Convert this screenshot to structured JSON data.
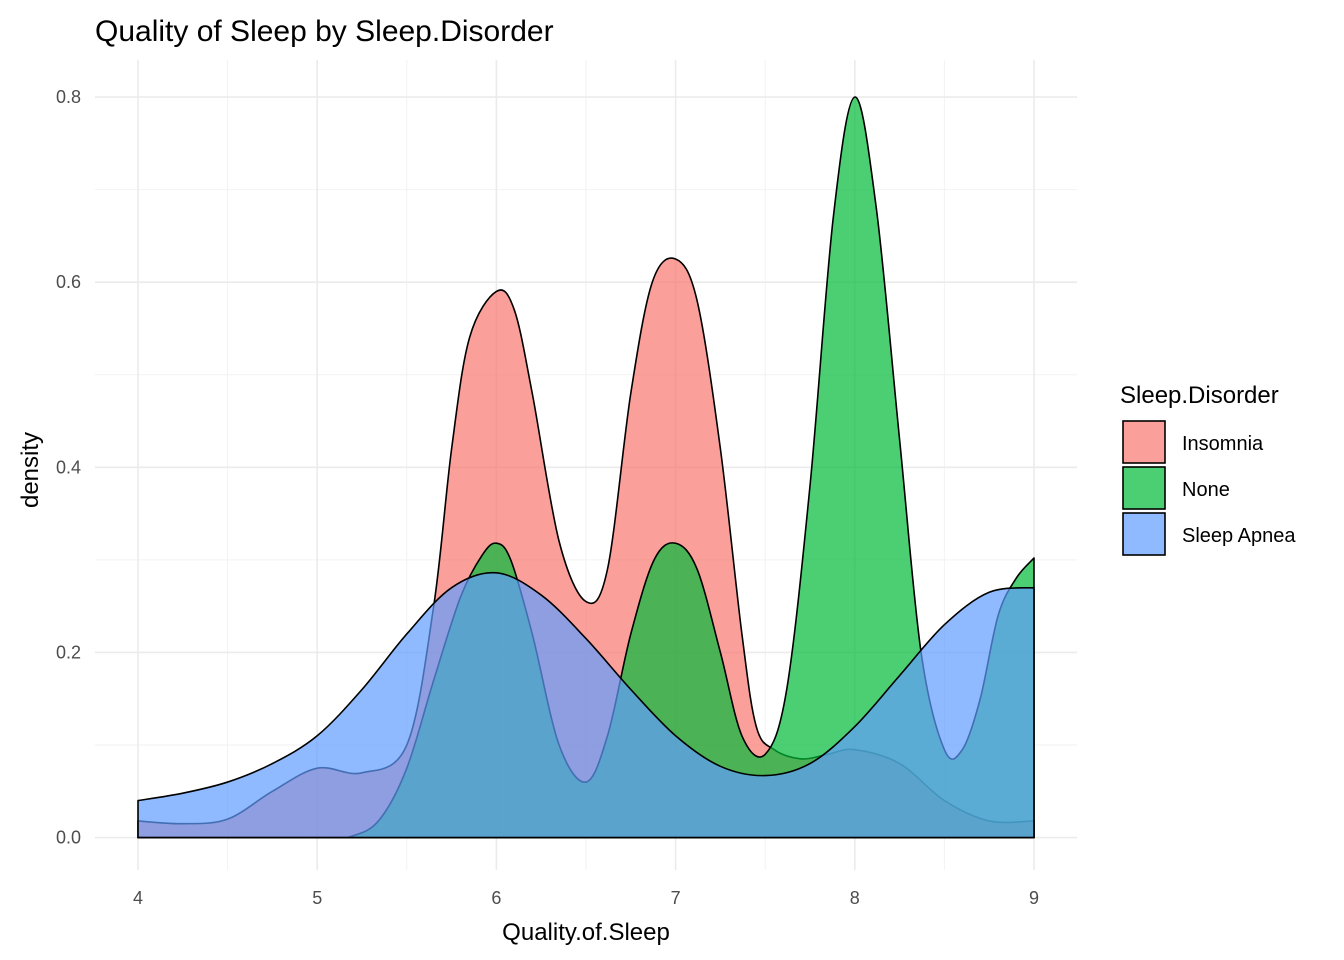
{
  "chart_data": {
    "type": "area",
    "title": "Quality of Sleep by Sleep.Disorder",
    "xlabel": "Quality.of.Sleep",
    "ylabel": "density",
    "xlim": [
      3.76,
      9.24
    ],
    "ylim": [
      -0.035,
      0.84
    ],
    "x_ticks": [
      4,
      5,
      6,
      7,
      8,
      9
    ],
    "x_tick_labels": [
      "4",
      "5",
      "6",
      "7",
      "8",
      "9"
    ],
    "y_ticks": [
      0.0,
      0.2,
      0.4,
      0.6,
      0.8
    ],
    "y_tick_labels": [
      "0.0",
      "0.2",
      "0.4",
      "0.6",
      "0.8"
    ],
    "grid": true,
    "legend": {
      "title": "Sleep.Disorder",
      "position": "right"
    },
    "series": [
      {
        "name": "Insomnia",
        "color": "#F8766D",
        "x": [
          4,
          4.25,
          4.5,
          4.75,
          5,
          5.25,
          5.5,
          5.65,
          5.75,
          5.85,
          6,
          6.1,
          6.2,
          6.35,
          6.5,
          6.62,
          6.75,
          6.87,
          7,
          7.12,
          7.25,
          7.37,
          7.45,
          7.55,
          7.7,
          7.85,
          8,
          8.25,
          8.5,
          8.75,
          9
        ],
        "y": [
          0.018,
          0.015,
          0.02,
          0.05,
          0.075,
          0.07,
          0.1,
          0.25,
          0.42,
          0.54,
          0.59,
          0.57,
          0.48,
          0.32,
          0.255,
          0.29,
          0.48,
          0.6,
          0.625,
          0.58,
          0.42,
          0.22,
          0.12,
          0.095,
          0.085,
          0.09,
          0.095,
          0.08,
          0.04,
          0.018,
          0.018
        ]
      },
      {
        "name": "None",
        "color": "#00BA38",
        "x": [
          4,
          5,
          5.2,
          5.35,
          5.5,
          5.65,
          5.8,
          5.92,
          6,
          6.08,
          6.2,
          6.35,
          6.5,
          6.62,
          6.75,
          6.88,
          7,
          7.12,
          7.25,
          7.37,
          7.5,
          7.62,
          7.75,
          7.88,
          8,
          8.12,
          8.25,
          8.37,
          8.5,
          8.6,
          8.7,
          8.8,
          8.9,
          9
        ],
        "y": [
          0.0,
          0.0,
          0.002,
          0.02,
          0.075,
          0.17,
          0.26,
          0.305,
          0.318,
          0.3,
          0.22,
          0.1,
          0.06,
          0.11,
          0.22,
          0.3,
          0.318,
          0.29,
          0.2,
          0.11,
          0.09,
          0.16,
          0.38,
          0.67,
          0.8,
          0.68,
          0.43,
          0.2,
          0.095,
          0.095,
          0.15,
          0.24,
          0.28,
          0.302
        ]
      },
      {
        "name": "Sleep Apnea",
        "color": "#619CFF",
        "x": [
          4,
          4.25,
          4.5,
          4.75,
          5,
          5.25,
          5.5,
          5.75,
          6,
          6.25,
          6.5,
          6.75,
          7,
          7.25,
          7.5,
          7.75,
          8,
          8.25,
          8.5,
          8.75,
          9
        ],
        "y": [
          0.04,
          0.048,
          0.06,
          0.08,
          0.11,
          0.16,
          0.22,
          0.27,
          0.286,
          0.262,
          0.215,
          0.16,
          0.11,
          0.077,
          0.067,
          0.08,
          0.12,
          0.175,
          0.23,
          0.265,
          0.27
        ]
      }
    ]
  }
}
